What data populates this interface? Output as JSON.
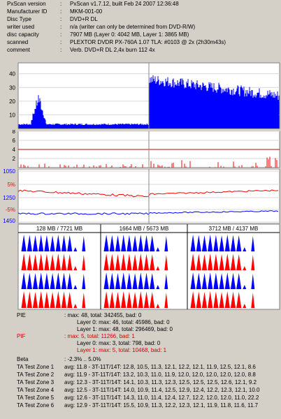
{
  "info": [
    {
      "key": "PxScan version",
      "value": "PxScan v1.7.12, built Feb 24 2007 12:36:48"
    },
    {
      "key": "Manufacturer ID",
      "value": "MKM-001-00"
    },
    {
      "key": "Disc Type",
      "value": "DVD+R DL"
    },
    {
      "key": "writer used",
      "value": "n/a (writer can only be determined from DVD-R/W)"
    },
    {
      "key": "disc capacity",
      "value": "7907 MB (Layer 0: 4042 MB,  Layer 1: 3865 MB)"
    },
    {
      "key": "scanned",
      "value": "PLEXTOR DVDR PX-760A 1.07 TLA: #0103 @ 2x (2h30m43s)"
    },
    {
      "key": "comment",
      "value": "Verb. DVD+R DL 2,4x burn 112 4x"
    }
  ],
  "colon": ":",
  "chart_data": [
    {
      "type": "area",
      "name": "PIE",
      "y_ticks": [
        "40",
        "30",
        "20",
        "10"
      ],
      "ylim": [
        0,
        48
      ],
      "grid": true,
      "layer_break": "at about 49% of the disc",
      "series": [
        {
          "name": "PIE",
          "color": "#0000ff"
        }
      ]
    },
    {
      "type": "line",
      "name": "PIF",
      "y_ticks": [
        "8",
        "6",
        "4",
        "2"
      ],
      "ylim": [
        0,
        8
      ],
      "threshold": 4,
      "series": [
        {
          "name": "PIF",
          "color": "#ff0000"
        }
      ]
    },
    {
      "type": "line",
      "name": "jitter",
      "y_ticks": [
        "1050",
        "5%",
        "1250",
        "-5%",
        "1450"
      ],
      "series": [
        {
          "name": "jitter",
          "color": "#ff0000"
        },
        {
          "name": "beta",
          "color": "#0000ff"
        }
      ]
    },
    {
      "type": "bar",
      "name": "TA test zones",
      "sections": [
        "128 MB / 7721 MB",
        "1664 MB / 5673 MB",
        "3712 MB / 4137 MB"
      ]
    }
  ],
  "colors": {
    "pie": "#0000ff",
    "pif": "#ff0000",
    "threshold": "#cc0000",
    "layer_break": "#888888"
  },
  "stats": {
    "pie_label": "PIE",
    "pie_value": ": max: 48, total: 342455, bad: 0",
    "pie_l0": "Layer 0: max: 46, total: 45986, bad: 0",
    "pie_l1": "Layer 1: max: 48, total: 296469, bad: 0",
    "pif_label": "PIF",
    "pif_value": ": max: 5, total: 11266, bad: 1",
    "pif_l0": "Layer 0: max: 3, total: 798, bad: 0",
    "pif_l1": "Layer 1: max: 5, total: 10468, bad: 1",
    "beta_label": "Beta",
    "beta_value": ": -2.3% .. 5.0%"
  },
  "ta_zones": [
    {
      "label": "TA Test Zone 1",
      "value": "avg: 11.8 - 3T-11T/14T: 12.8, 10.5, 11.3, 12.1, 12.2, 12.1, 11.9, 12.5, 12.1, 8.6"
    },
    {
      "label": "TA Test Zone 2",
      "value": "avg: 11.9 - 3T-11T/14T: 13.2, 10.3, 11.0, 11.9, 12.0, 12.0, 12.0, 12.0, 12.0, 8.8"
    },
    {
      "label": "TA Test Zone 3",
      "value": "avg: 12.3 - 3T-11T/14T: 14.1, 10.3, 11.3, 12.3, 12.5, 12.5, 12.5, 12.6, 12.1, 9.2"
    },
    {
      "label": "TA Test Zone 4",
      "value": "avg: 12.5 - 3T-11T/14T: 14.0, 10.9, 11.4, 12.5, 12.9, 12.4, 12.2, 12.3, 12.1, 10.0"
    },
    {
      "label": "TA Test Zone 5",
      "value": "avg: 12.6 - 3T-11T/14T: 14.3, 11.0, 11.4, 12.4, 12.7, 12.2, 12.0, 12.0, 11.0, 22.2"
    },
    {
      "label": "TA Test Zone 6",
      "value": "avg: 12.9 - 3T-11T/14T: 15.5, 10.9, 11.3, 12.2, 12.3, 12.1, 11.9, 11.8, 11.6, 11.7"
    }
  ]
}
